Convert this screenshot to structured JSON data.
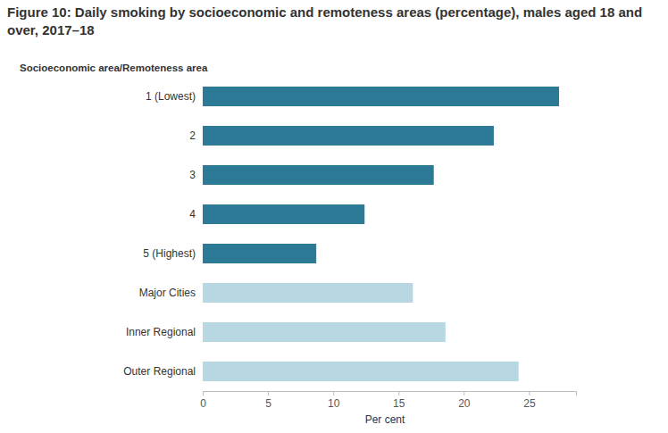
{
  "chart_data": {
    "type": "bar",
    "title": "Figure 10: Daily smoking by socioeconomic and remoteness areas (percentage), males aged 18 and over, 2017–18",
    "y_label": "Socioeconomic area/Remoteness area",
    "x_label": "Per cent",
    "orientation": "horizontal",
    "categories": [
      "1 (Lowest)",
      "2",
      "3",
      "4",
      "5 (Highest)",
      "Major Cities",
      "Inner Regional",
      "Outer Regional"
    ],
    "values": [
      27.3,
      22.3,
      17.7,
      12.4,
      8.7,
      16.1,
      18.6,
      24.2
    ],
    "colors": [
      "#2c7a96",
      "#2c7a96",
      "#2c7a96",
      "#2c7a96",
      "#2c7a96",
      "#b7d7e2",
      "#b7d7e2",
      "#b7d7e2"
    ],
    "xlim": [
      0,
      28.6
    ],
    "xticks": [
      0,
      5,
      10,
      15,
      20,
      25
    ],
    "grid": false
  }
}
